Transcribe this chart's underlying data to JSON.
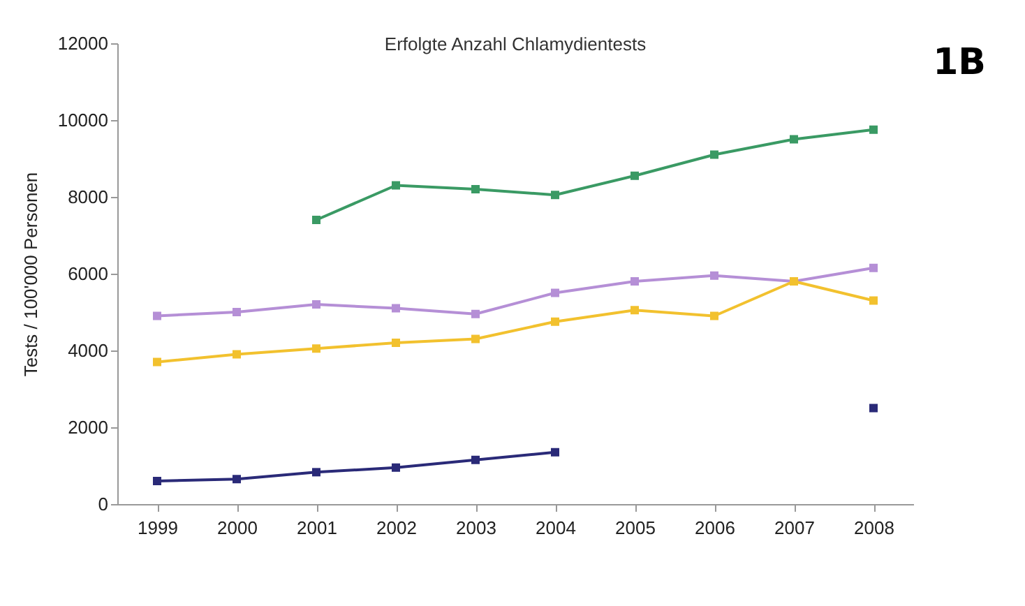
{
  "chart_data": {
    "type": "line",
    "title": "Erfolgte Anzahl Chlamydientests",
    "ylabel": "Tests / 100'000 Personen",
    "annotations": [
      "1B"
    ],
    "categories": [
      "1999",
      "2000",
      "2001",
      "2002",
      "2003",
      "2004",
      "2005",
      "2006",
      "2007",
      "2008"
    ],
    "series": [
      {
        "color": "#3a9a64",
        "values": [
          null,
          null,
          7400,
          8300,
          8200,
          8050,
          8550,
          9100,
          9500,
          9750
        ]
      },
      {
        "color": "#b58fd6",
        "values": [
          4900,
          5000,
          5200,
          5100,
          4950,
          5500,
          5800,
          5950,
          5800,
          6150
        ]
      },
      {
        "color": "#f2c12e",
        "values": [
          3700,
          3900,
          4050,
          4200,
          4300,
          4750,
          5050,
          4900,
          5800,
          5300
        ]
      },
      {
        "color": "#2a2a78",
        "values": [
          600,
          650,
          830,
          950,
          1150,
          1350,
          null,
          null,
          null,
          2500
        ]
      }
    ],
    "ylim": [
      0,
      12000
    ],
    "yticks": [
      0,
      2000,
      4000,
      6000,
      8000,
      10000,
      12000
    ],
    "grid": false,
    "legend": false,
    "marker": "square",
    "line_style": "solid"
  }
}
